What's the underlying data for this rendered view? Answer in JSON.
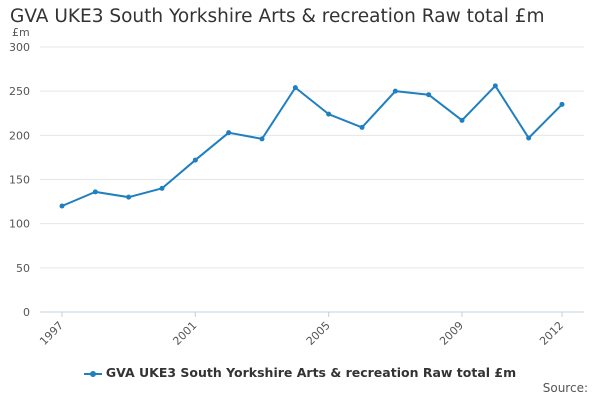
{
  "chart_data": {
    "type": "line",
    "title": "GVA UKE3 South Yorkshire Arts & recreation Raw total £m",
    "ylabel": "£m",
    "xlabel": "",
    "ylim": [
      0,
      300
    ],
    "yticks": [
      "0",
      "50",
      "100",
      "150",
      "200",
      "250",
      "300"
    ],
    "xticks": [
      "1997",
      "2001",
      "2005",
      "2009",
      "2012"
    ],
    "x": [
      1997,
      1998,
      1999,
      2000,
      2001,
      2002,
      2003,
      2004,
      2005,
      2006,
      2007,
      2008,
      2009,
      2010,
      2011,
      2012
    ],
    "series": [
      {
        "name": "GVA UKE3 South Yorkshire Arts & recreation Raw total £m",
        "values": [
          120,
          136,
          130,
          140,
          172,
          203,
          196,
          254,
          224,
          209,
          250,
          246,
          217,
          256,
          197,
          235
        ]
      }
    ],
    "grid": true,
    "legend": "bottom"
  },
  "source_label": "Source:",
  "colors": {
    "series": "#1f7fbf",
    "grid": "#e6e6e6",
    "axis": "#c0d0e0"
  }
}
